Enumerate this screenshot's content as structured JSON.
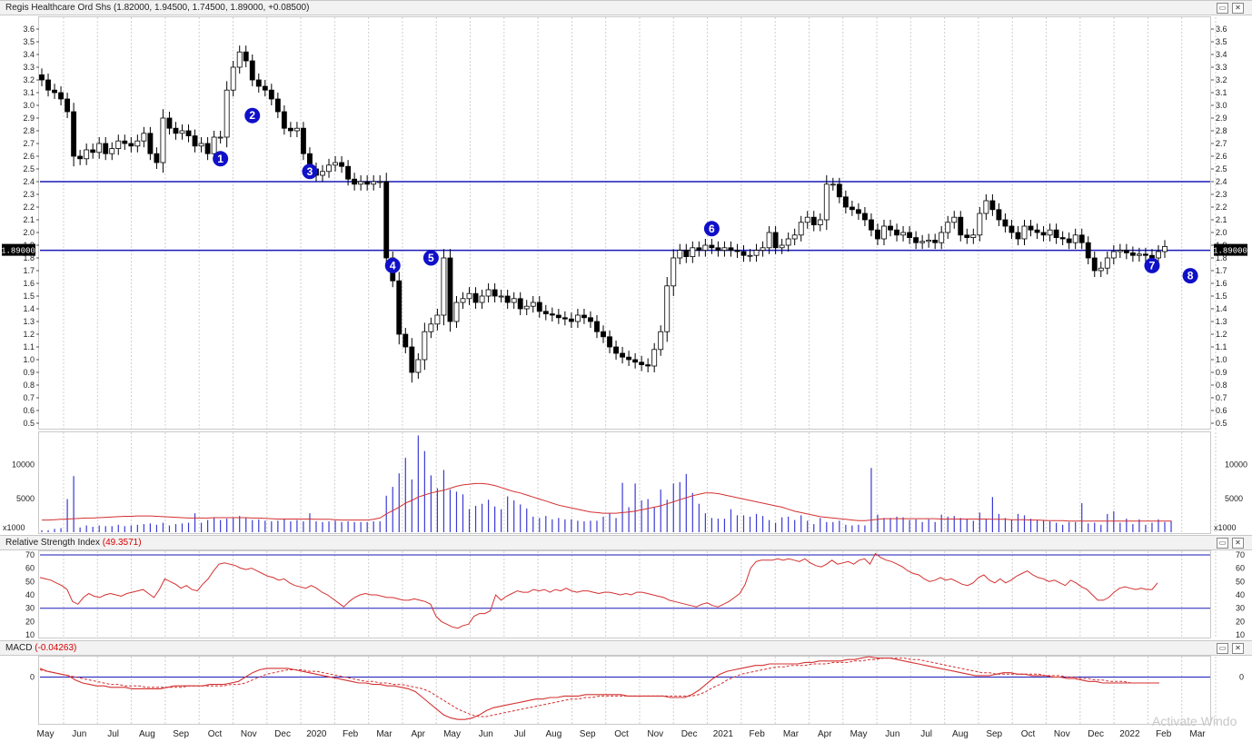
{
  "title_bar": {
    "label": "Regis Healthcare Ord Shs (1.82000, 1.94500, 1.74500, 1.89000, +0.08500)"
  },
  "price_tag": "1.89000",
  "chart_data": [
    {
      "type": "candlestick",
      "title": "Regis Healthcare Ord Shs",
      "ohlc_summary": {
        "open": 1.82,
        "high": 1.945,
        "low": 1.745,
        "close": 1.89,
        "change": 0.085
      },
      "ylim": [
        0.45,
        3.7
      ],
      "yticks": [
        0.5,
        0.6,
        0.7,
        0.8,
        0.9,
        1.0,
        1.1,
        1.2,
        1.3,
        1.4,
        1.5,
        1.6,
        1.7,
        1.8,
        1.9,
        2.0,
        2.1,
        2.2,
        2.3,
        2.4,
        2.5,
        2.6,
        2.7,
        2.8,
        2.9,
        3.0,
        3.1,
        3.2,
        3.3,
        3.4,
        3.5,
        3.6
      ],
      "horizontal_lines": [
        2.4,
        1.86
      ],
      "x_labels": [
        "May",
        "Jun",
        "Jul",
        "Aug",
        "Sep",
        "Oct",
        "Nov",
        "Dec",
        "2020",
        "Feb",
        "Mar",
        "Apr",
        "May",
        "Jun",
        "Jul",
        "Aug",
        "Sep",
        "Oct",
        "Nov",
        "Dec",
        "2021",
        "Feb",
        "Mar",
        "Apr",
        "May",
        "Jun",
        "Jul",
        "Aug",
        "Sep",
        "Oct",
        "Nov",
        "Dec",
        "2022",
        "Feb",
        "Mar"
      ],
      "markers": [
        {
          "label": "1",
          "week": 28,
          "price": 2.58
        },
        {
          "label": "2",
          "week": 33,
          "price": 2.92
        },
        {
          "label": "3",
          "week": 42,
          "price": 2.48
        },
        {
          "label": "4",
          "week": 55,
          "price": 1.74
        },
        {
          "label": "5",
          "week": 61,
          "price": 1.8
        },
        {
          "label": "6",
          "week": 105,
          "price": 2.03
        },
        {
          "label": "7",
          "week": 174,
          "price": 1.74
        },
        {
          "label": "8",
          "week": 180,
          "price": 1.66
        }
      ],
      "weekly_close": [
        3.2,
        3.12,
        3.1,
        3.05,
        2.95,
        2.6,
        2.58,
        2.65,
        2.63,
        2.7,
        2.62,
        2.66,
        2.72,
        2.7,
        2.68,
        2.72,
        2.78,
        2.62,
        2.55,
        2.9,
        2.82,
        2.78,
        2.8,
        2.76,
        2.68,
        2.7,
        2.62,
        2.75,
        2.75,
        3.12,
        3.3,
        3.42,
        3.35,
        3.2,
        3.15,
        3.12,
        3.05,
        2.95,
        2.82,
        2.8,
        2.82,
        2.62,
        2.5,
        2.45,
        2.48,
        2.53,
        2.55,
        2.52,
        2.42,
        2.38,
        2.4,
        2.38,
        2.4,
        2.4,
        1.8,
        1.62,
        1.2,
        1.1,
        0.9,
        1.0,
        1.22,
        1.28,
        1.35,
        1.8,
        1.3,
        1.45,
        1.48,
        1.52,
        1.45,
        1.5,
        1.55,
        1.5,
        1.5,
        1.45,
        1.48,
        1.4,
        1.42,
        1.45,
        1.38,
        1.36,
        1.35,
        1.33,
        1.32,
        1.3,
        1.35,
        1.33,
        1.3,
        1.22,
        1.18,
        1.1,
        1.05,
        1.02,
        1.0,
        0.98,
        0.96,
        0.95,
        1.08,
        1.22,
        1.58,
        1.8,
        1.86,
        1.81,
        1.88,
        1.86,
        1.9,
        1.88,
        1.86,
        1.88,
        1.86,
        1.85,
        1.82,
        1.82,
        1.86,
        1.88,
        2.0,
        1.88,
        1.9,
        1.95,
        1.98,
        2.08,
        2.12,
        2.06,
        2.1,
        2.38,
        2.38,
        2.28,
        2.2,
        2.18,
        2.15,
        2.1,
        2.02,
        1.95,
        2.05,
        2.02,
        1.98,
        2.0,
        1.96,
        1.92,
        1.93,
        1.94,
        1.92,
        2.0,
        2.08,
        2.12,
        1.98,
        1.96,
        1.98,
        2.15,
        2.25,
        2.18,
        2.1,
        2.05,
        2.0,
        1.95,
        2.05,
        2.02,
        2.0,
        1.98,
        2.02,
        1.96,
        1.95,
        1.92,
        1.98,
        1.92,
        1.8,
        1.7,
        1.72,
        1.8,
        1.85,
        1.86,
        1.84,
        1.82,
        1.83,
        1.82,
        1.8,
        1.85,
        1.89
      ]
    },
    {
      "type": "bar",
      "title": "Volume",
      "unit_label": "x1000",
      "yticks": [
        5000,
        10000
      ],
      "ylim": [
        0,
        14500
      ],
      "volume": [
        300,
        300,
        500,
        600,
        4900,
        8300,
        700,
        1000,
        800,
        1000,
        900,
        900,
        1100,
        900,
        1000,
        1100,
        1200,
        1300,
        1100,
        1400,
        1000,
        1200,
        1300,
        1400,
        2800,
        1400,
        1800,
        2200,
        1800,
        2000,
        2200,
        2400,
        2200,
        1800,
        1900,
        1700,
        1600,
        1700,
        1900,
        1600,
        1800,
        1600,
        2800,
        1600,
        1500,
        1600,
        1700,
        1500,
        1600,
        1500,
        1500,
        1500,
        1600,
        1600,
        5400,
        6700,
        8700,
        11000,
        7800,
        14300,
        12000,
        8400,
        6500,
        9200,
        6300,
        6000,
        5600,
        3400,
        3900,
        4200,
        4800,
        3800,
        3400,
        5300,
        4700,
        4100,
        3500,
        2300,
        2100,
        2400,
        1900,
        2100,
        1900,
        1900,
        1700,
        1600,
        1700,
        1700,
        2300,
        2800,
        2100,
        7300,
        3700,
        7200,
        4700,
        4900,
        3700,
        6300,
        4800,
        7200,
        7400,
        8600,
        5800,
        4200,
        2800,
        2100,
        2000,
        2000,
        3400,
        2500,
        2500,
        2300,
        2700,
        2400,
        1800,
        1400,
        2200,
        2300,
        1800,
        2500,
        1700,
        1200,
        2100,
        1500,
        1500,
        1700,
        1100,
        1000,
        1100,
        1000,
        9500,
        2600,
        2100,
        2100,
        2300,
        2200,
        1800,
        1900,
        1500,
        1900,
        1500,
        2600,
        2300,
        2400,
        2100,
        2000,
        1700,
        2900,
        1900,
        5200,
        2700,
        2100,
        1900,
        2700,
        2500,
        2000,
        1800,
        1800,
        1600,
        1400,
        1100,
        1500,
        1500,
        4300,
        1300,
        1400,
        1100,
        2700,
        3100,
        1400,
        2000,
        1200,
        1900,
        1100,
        1400,
        1900,
        1500,
        1700
      ],
      "ma": [
        1800,
        1800,
        1850,
        1900,
        1950,
        2000,
        2050,
        2100,
        2100,
        2150,
        2200,
        2250,
        2300,
        2350,
        2350,
        2400,
        2400,
        2400,
        2350,
        2300,
        2250,
        2200,
        2150,
        2100,
        2100,
        2100,
        2100,
        2150,
        2150,
        2150,
        2150,
        2150,
        2150,
        2100,
        2100,
        2050,
        2000,
        1950,
        1950,
        1950,
        1950,
        1950,
        1950,
        1900,
        1900,
        1900,
        1850,
        1800,
        1800,
        1800,
        1800,
        1800,
        1900,
        2100,
        2700,
        3200,
        3700,
        4300,
        4700,
        5200,
        5500,
        5800,
        6000,
        6200,
        6500,
        6800,
        7000,
        7100,
        7200,
        7200,
        7100,
        6900,
        6600,
        6300,
        6000,
        5800,
        5500,
        5200,
        4900,
        4600,
        4300,
        4000,
        3800,
        3600,
        3400,
        3200,
        3000,
        2900,
        2800,
        2800,
        2800,
        2900,
        3000,
        3100,
        3300,
        3500,
        3700,
        3900,
        4200,
        4500,
        4800,
        5100,
        5400,
        5600,
        5800,
        5800,
        5700,
        5500,
        5300,
        5100,
        4900,
        4700,
        4500,
        4300,
        4100,
        3900,
        3700,
        3400,
        3100,
        2900,
        2700,
        2500,
        2300,
        2200,
        2100,
        2000,
        1900,
        1800,
        1700,
        1700,
        1800,
        1900,
        2000,
        2000,
        2000,
        2000,
        2000,
        2000,
        2000,
        2000,
        2000,
        1950,
        1950,
        1950,
        1950,
        1950,
        1950,
        1950,
        1950,
        1900,
        1900,
        1900,
        1850,
        1850,
        1850,
        1800,
        1800,
        1750,
        1700,
        1700,
        1700,
        1650,
        1650,
        1650,
        1650,
        1650,
        1650,
        1650,
        1650,
        1650,
        1650,
        1650,
        1650,
        1650,
        1650,
        1650,
        1650,
        1650
      ]
    },
    {
      "type": "line",
      "title": "Relative Strength Index",
      "current_value": "49.3571",
      "ylim": [
        8,
        72
      ],
      "yticks": [
        10,
        20,
        30,
        40,
        50,
        60,
        70
      ],
      "reference_lines": [
        30,
        70
      ],
      "rsi": [
        53,
        52,
        51,
        49,
        47,
        44,
        35,
        33,
        38,
        41,
        39,
        38,
        40,
        41,
        40,
        39,
        41,
        42,
        43,
        44,
        41,
        38,
        44,
        52,
        50,
        48,
        45,
        47,
        44,
        43,
        48,
        52,
        58,
        63,
        64,
        63,
        62,
        60,
        59,
        60,
        58,
        56,
        54,
        53,
        51,
        52,
        49,
        47,
        46,
        45,
        47,
        45,
        42,
        40,
        37,
        34,
        31,
        35,
        38,
        40,
        41,
        40,
        40,
        39,
        38,
        38,
        37,
        36,
        36,
        37,
        36,
        35,
        33,
        24,
        20,
        18,
        16,
        15,
        17,
        18,
        24,
        26,
        26,
        28,
        40,
        36,
        39,
        41,
        43,
        42,
        42,
        44,
        43,
        44,
        42,
        44,
        43,
        45,
        43,
        42,
        43,
        43,
        42,
        41,
        42,
        42,
        41,
        40,
        41,
        40,
        42,
        42,
        41,
        40,
        39,
        38,
        36,
        35,
        34,
        33,
        32,
        31,
        33,
        34,
        32,
        31,
        33,
        35,
        38,
        41,
        48,
        60,
        65,
        66,
        66,
        66,
        67,
        66,
        67,
        66,
        65,
        67,
        64,
        62,
        61,
        63,
        66,
        63,
        64,
        65,
        63,
        66,
        67,
        63,
        71,
        68,
        66,
        65,
        63,
        61,
        58,
        56,
        55,
        52,
        50,
        51,
        53,
        51,
        52,
        50,
        48,
        47,
        49,
        53,
        55,
        51,
        49,
        52,
        49,
        51,
        54,
        56,
        58,
        55,
        53,
        52,
        50,
        51,
        49,
        47,
        51,
        49,
        46,
        44,
        40,
        36,
        36,
        38,
        42,
        45,
        46,
        45,
        44,
        45,
        44,
        44,
        49
      ]
    },
    {
      "type": "line",
      "title": "MACD",
      "current_value": "-0.04263",
      "yticks": [
        0
      ],
      "ylim": [
        -0.32,
        0.14
      ],
      "macd": [
        0.06,
        0.04,
        0.03,
        0.02,
        0.01,
        -0.02,
        -0.04,
        -0.05,
        -0.06,
        -0.06,
        -0.07,
        -0.07,
        -0.07,
        -0.08,
        -0.08,
        -0.08,
        -0.08,
        -0.08,
        -0.07,
        -0.06,
        -0.06,
        -0.06,
        -0.06,
        -0.06,
        -0.05,
        -0.05,
        -0.05,
        -0.04,
        -0.03,
        0.0,
        0.03,
        0.05,
        0.06,
        0.06,
        0.06,
        0.06,
        0.05,
        0.04,
        0.03,
        0.02,
        0.01,
        0.0,
        -0.01,
        -0.02,
        -0.03,
        -0.04,
        -0.04,
        -0.05,
        -0.05,
        -0.06,
        -0.06,
        -0.07,
        -0.08,
        -0.1,
        -0.14,
        -0.18,
        -0.22,
        -0.26,
        -0.28,
        -0.29,
        -0.29,
        -0.28,
        -0.26,
        -0.23,
        -0.21,
        -0.2,
        -0.19,
        -0.18,
        -0.17,
        -0.16,
        -0.15,
        -0.15,
        -0.14,
        -0.14,
        -0.13,
        -0.13,
        -0.13,
        -0.12,
        -0.12,
        -0.12,
        -0.12,
        -0.12,
        -0.12,
        -0.13,
        -0.13,
        -0.13,
        -0.13,
        -0.13,
        -0.13,
        -0.14,
        -0.14,
        -0.14,
        -0.12,
        -0.09,
        -0.05,
        -0.01,
        0.02,
        0.04,
        0.05,
        0.06,
        0.07,
        0.08,
        0.08,
        0.09,
        0.09,
        0.09,
        0.09,
        0.09,
        0.1,
        0.1,
        0.11,
        0.11,
        0.11,
        0.11,
        0.12,
        0.12,
        0.13,
        0.14,
        0.13,
        0.13,
        0.13,
        0.12,
        0.11,
        0.1,
        0.09,
        0.08,
        0.07,
        0.06,
        0.05,
        0.04,
        0.03,
        0.02,
        0.01,
        0.01,
        0.01,
        0.02,
        0.03,
        0.03,
        0.02,
        0.02,
        0.01,
        0.01,
        0.01,
        0.0,
        0.0,
        -0.01,
        -0.01,
        -0.02,
        -0.03,
        -0.03,
        -0.04,
        -0.04,
        -0.04,
        -0.04,
        -0.04,
        -0.04,
        -0.04,
        -0.04,
        -0.04
      ],
      "signal": [
        0.05,
        0.04,
        0.03,
        0.02,
        0.01,
        0.0,
        -0.01,
        -0.02,
        -0.03,
        -0.04,
        -0.05,
        -0.05,
        -0.06,
        -0.06,
        -0.06,
        -0.07,
        -0.07,
        -0.07,
        -0.07,
        -0.07,
        -0.07,
        -0.06,
        -0.06,
        -0.06,
        -0.06,
        -0.06,
        -0.06,
        -0.05,
        -0.05,
        -0.04,
        -0.02,
        0.0,
        0.02,
        0.03,
        0.04,
        0.05,
        0.05,
        0.05,
        0.04,
        0.04,
        0.03,
        0.02,
        0.01,
        0.0,
        -0.01,
        -0.02,
        -0.03,
        -0.03,
        -0.04,
        -0.04,
        -0.05,
        -0.05,
        -0.06,
        -0.07,
        -0.08,
        -0.1,
        -0.13,
        -0.16,
        -0.19,
        -0.22,
        -0.24,
        -0.26,
        -0.27,
        -0.27,
        -0.26,
        -0.25,
        -0.24,
        -0.23,
        -0.22,
        -0.21,
        -0.2,
        -0.19,
        -0.18,
        -0.17,
        -0.16,
        -0.15,
        -0.15,
        -0.14,
        -0.14,
        -0.13,
        -0.13,
        -0.13,
        -0.13,
        -0.13,
        -0.13,
        -0.13,
        -0.13,
        -0.13,
        -0.13,
        -0.13,
        -0.13,
        -0.13,
        -0.13,
        -0.12,
        -0.1,
        -0.07,
        -0.05,
        -0.02,
        0.0,
        0.02,
        0.03,
        0.04,
        0.05,
        0.06,
        0.07,
        0.07,
        0.08,
        0.08,
        0.08,
        0.09,
        0.09,
        0.09,
        0.1,
        0.1,
        0.1,
        0.11,
        0.11,
        0.12,
        0.12,
        0.13,
        0.13,
        0.13,
        0.13,
        0.12,
        0.12,
        0.11,
        0.1,
        0.09,
        0.08,
        0.07,
        0.06,
        0.05,
        0.04,
        0.03,
        0.03,
        0.02,
        0.02,
        0.02,
        0.02,
        0.02,
        0.02,
        0.02,
        0.01,
        0.01,
        0.01,
        0.0,
        0.0,
        -0.01,
        -0.01,
        -0.02,
        -0.02,
        -0.03,
        -0.03,
        -0.03,
        -0.04,
        -0.04,
        -0.04,
        -0.04
      ]
    }
  ],
  "panels": {
    "rsi_label": "Relative Strength Index",
    "rsi_value": "(49.3571)",
    "macd_label": "MACD",
    "macd_value": "(-0.04263)",
    "vol_unit_left": "x1000",
    "vol_unit_right": "x1000"
  },
  "colors": {
    "line_blue": "#1a1ab8",
    "indicator_red": "#d43030",
    "volume_bar": "#3a3ad6",
    "candle_up": "#ffffff",
    "candle_down": "#000000",
    "grid": "#cfcfcf"
  },
  "watermark": "Activate Windo"
}
